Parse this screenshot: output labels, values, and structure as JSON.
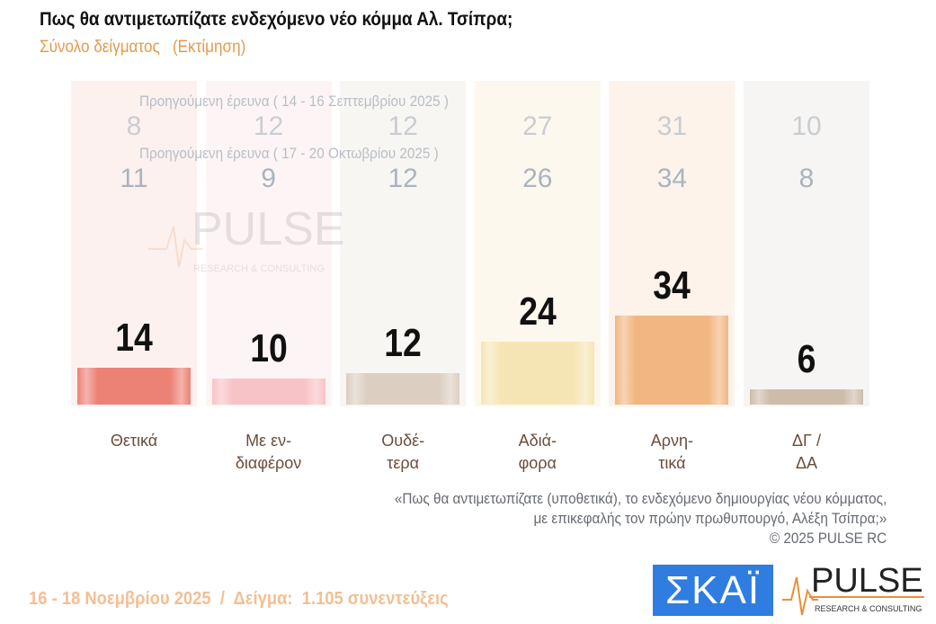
{
  "title": "Πως θα αντιμετωπίζατε ενδεχόμενο νέο κόμμα Αλ. Τσίπρα;",
  "subtitle": "Σύνολο δείγματος   (Εκτίμηση)",
  "chart_data": {
    "type": "bar",
    "categories": [
      "Θετικά",
      "Με εν-\nδιαφέρον",
      "Ουδέ-\nτερα",
      "Αδιά-\nφορα",
      "Αρνη-\nτικά",
      "ΔΓ /\nΔΑ"
    ],
    "values": [
      14,
      10,
      12,
      24,
      34,
      6
    ],
    "colors": [
      "#ec8275",
      "#f8c3c6",
      "#dccfc1",
      "#f6e5b4",
      "#f2b682",
      "#cdbcaa"
    ],
    "previous": [
      {
        "label": "Προηγούμενη έρευνα ( 14 - 16 Σεπτεμβρίου 2025 )",
        "values": [
          8,
          12,
          12,
          27,
          31,
          10
        ]
      },
      {
        "label": "Προηγούμενη έρευνα ( 17 - 20 Οκτωβρίου 2025 )",
        "values": [
          11,
          9,
          12,
          26,
          34,
          8
        ]
      }
    ]
  },
  "note": [
    "«Πως θα αντιμετωπίζατε (υποθετικά), το ενδεχόμενο δημιουργίας νέου κόμματος,",
    "με επικεφαλής τον πρώην πρωθυπουργό, Αλέξη Τσίπρα;»",
    "©  2025  PULSE RC"
  ],
  "footer": "16 - 18 Νοεμβρίου 2025  /  Δείγμα:  1.105 συνεντεύξεις",
  "logos": {
    "skai": "ΣΚΑΪ",
    "pulse": "PULSE",
    "pulse_sub": "RESEARCH & CONSULTING"
  }
}
